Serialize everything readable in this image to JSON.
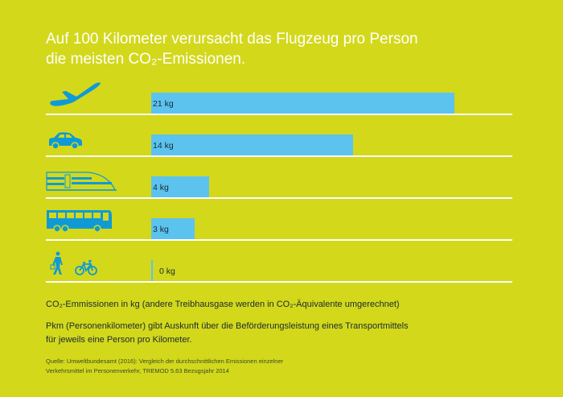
{
  "title_line1": "Auf 100 Kilometer verursacht das Flugzeug pro Person",
  "title_line2": "die meisten CO₂-Emissionen.",
  "colors": {
    "background": "#d3d81b",
    "bar": "#5cc3ef",
    "icon": "#0f9ad6"
  },
  "chart_data": {
    "type": "bar",
    "orientation": "horizontal",
    "unit": "kg",
    "categories": [
      "airplane-icon",
      "car-icon",
      "train-icon",
      "bus-icon",
      "walk-bike-icon"
    ],
    "values": [
      21,
      14,
      4,
      3,
      0
    ],
    "labels": [
      "21 kg",
      "14 kg",
      "4 kg",
      "3 kg",
      "0 kg"
    ],
    "xlim": [
      0,
      21
    ]
  },
  "notes": {
    "unit_note": "CO₂-Emmissionen in kg (andere Treibhausgase werden in CO₂-Äquivalente umgerechnet)",
    "pkm_line1": "Pkm (Personenkilometer) gibt Auskunft über die Beförderungsleistung eines Transportmittels",
    "pkm_line2": "für jeweils eine Person pro Kilometer.",
    "source_line1": "Quelle: Umweltbundesamt (2016): Vergleich der durchschnittlichen Emissionen einzelner",
    "source_line2": "Verkehrsmittel im Personenverkehr, TREMOD 5.63 Bezugsjahr 2014"
  }
}
